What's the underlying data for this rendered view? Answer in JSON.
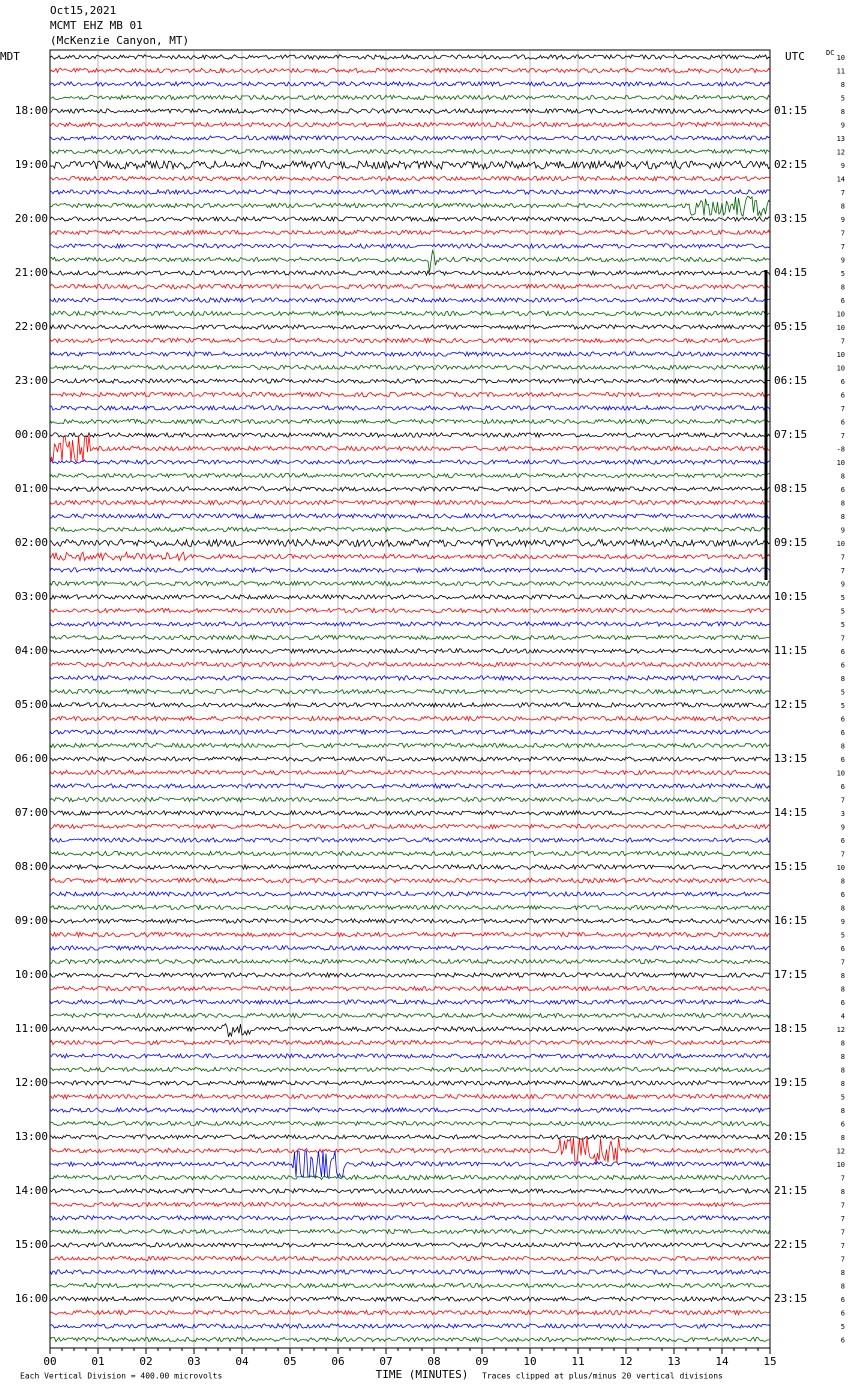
{
  "header": {
    "date": "Oct15,2021",
    "station": "MCMT EHZ MB 01",
    "location": "(McKenzie Canyon, MT)"
  },
  "left_axis": {
    "title": "MDT",
    "labels": [
      "18:00",
      "19:00",
      "20:00",
      "21:00",
      "22:00",
      "23:00",
      "00:00",
      "01:00",
      "02:00",
      "03:00",
      "04:00",
      "05:00",
      "06:00",
      "07:00",
      "08:00",
      "09:00",
      "10:00",
      "11:00",
      "12:00",
      "13:00",
      "14:00",
      "15:00",
      "16:00"
    ]
  },
  "right_axis": {
    "title": "UTC",
    "labels": [
      "01:15",
      "02:15",
      "03:15",
      "04:15",
      "05:15",
      "06:15",
      "07:15",
      "08:15",
      "09:15",
      "10:15",
      "11:15",
      "12:15",
      "13:15",
      "14:15",
      "15:15",
      "16:15",
      "17:15",
      "18:15",
      "19:15",
      "20:15",
      "21:15",
      "22:15",
      "23:15"
    ]
  },
  "dc": {
    "title": "DC",
    "values": [
      10,
      11,
      8,
      5,
      8,
      9,
      13,
      12,
      9,
      14,
      7,
      8,
      9,
      7,
      7,
      9,
      5,
      8,
      6,
      10,
      10,
      7,
      10,
      10,
      6,
      6,
      7,
      6,
      7,
      -8,
      10,
      8,
      6,
      8,
      8,
      9,
      10,
      7,
      7,
      9,
      5,
      5,
      5,
      7,
      6,
      6,
      8,
      5,
      5,
      6,
      6,
      8,
      6,
      10,
      6,
      7,
      3,
      9,
      6,
      7,
      10,
      8,
      6,
      8,
      9,
      5,
      6,
      7,
      8,
      8,
      6,
      4,
      12,
      8,
      8,
      8,
      8,
      5,
      8,
      6,
      8,
      12,
      10,
      7,
      8,
      7,
      7,
      7,
      7,
      7,
      8,
      8,
      6,
      6,
      5,
      6
    ]
  },
  "trace_colors": [
    "#000000",
    "#ff0000",
    "#0000ff",
    "#006400"
  ],
  "x_axis": {
    "title": "TIME (MINUTES)",
    "ticks": [
      "00",
      "01",
      "02",
      "03",
      "04",
      "05",
      "06",
      "07",
      "08",
      "09",
      "10",
      "11",
      "12",
      "13",
      "14",
      "15"
    ]
  },
  "footer": {
    "scale": "Each Vertical Division =  400.00 microvolts",
    "clip": "Traces clipped at plus/minus 20 vertical divisions"
  }
}
